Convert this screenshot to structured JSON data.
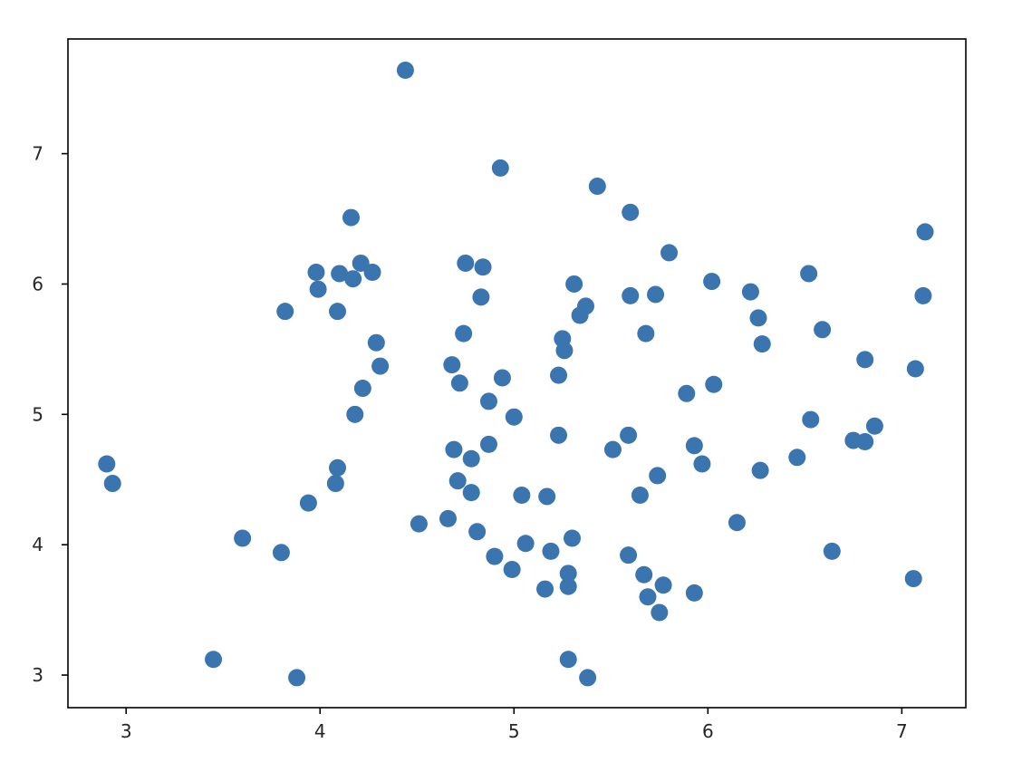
{
  "chart_data": {
    "type": "scatter",
    "title": "",
    "xlabel": "",
    "ylabel": "",
    "xlim": [
      2.7,
      7.33
    ],
    "ylim": [
      2.75,
      7.88
    ],
    "xticks": [
      3,
      4,
      5,
      6,
      7
    ],
    "yticks": [
      3,
      4,
      5,
      6,
      7
    ],
    "xtick_labels": [
      "3",
      "4",
      "5",
      "6",
      "7"
    ],
    "ytick_labels": [
      "3",
      "4",
      "5",
      "6",
      "7"
    ],
    "grid": false,
    "legend": "none",
    "marker_color": "#3a75b0",
    "series": [
      {
        "points": [
          [
            2.9,
            4.62
          ],
          [
            2.93,
            4.47
          ],
          [
            3.45,
            3.12
          ],
          [
            3.6,
            4.05
          ],
          [
            3.8,
            3.94
          ],
          [
            3.82,
            5.79
          ],
          [
            3.88,
            2.98
          ],
          [
            3.94,
            4.32
          ],
          [
            3.98,
            6.09
          ],
          [
            3.99,
            5.96
          ],
          [
            4.08,
            4.47
          ],
          [
            4.09,
            4.59
          ],
          [
            4.09,
            5.79
          ],
          [
            4.1,
            6.08
          ],
          [
            4.16,
            6.51
          ],
          [
            4.17,
            6.04
          ],
          [
            4.18,
            5.0
          ],
          [
            4.21,
            6.16
          ],
          [
            4.22,
            5.2
          ],
          [
            4.27,
            6.09
          ],
          [
            4.29,
            5.55
          ],
          [
            4.31,
            5.37
          ],
          [
            4.44,
            7.64
          ],
          [
            4.51,
            4.16
          ],
          [
            4.66,
            4.2
          ],
          [
            4.68,
            5.38
          ],
          [
            4.69,
            4.73
          ],
          [
            4.71,
            4.49
          ],
          [
            4.72,
            5.24
          ],
          [
            4.74,
            5.62
          ],
          [
            4.75,
            6.16
          ],
          [
            4.78,
            4.4
          ],
          [
            4.78,
            4.66
          ],
          [
            4.81,
            4.1
          ],
          [
            4.83,
            5.9
          ],
          [
            4.84,
            6.13
          ],
          [
            4.87,
            5.1
          ],
          [
            4.87,
            4.77
          ],
          [
            4.9,
            3.91
          ],
          [
            4.93,
            6.89
          ],
          [
            4.94,
            5.28
          ],
          [
            4.99,
            3.81
          ],
          [
            5.0,
            4.98
          ],
          [
            5.04,
            4.38
          ],
          [
            5.06,
            4.01
          ],
          [
            5.16,
            3.66
          ],
          [
            5.17,
            4.37
          ],
          [
            5.19,
            3.95
          ],
          [
            5.23,
            4.84
          ],
          [
            5.23,
            5.3
          ],
          [
            5.25,
            5.58
          ],
          [
            5.26,
            5.49
          ],
          [
            5.28,
            3.68
          ],
          [
            5.28,
            3.78
          ],
          [
            5.28,
            3.12
          ],
          [
            5.3,
            4.05
          ],
          [
            5.31,
            6.0
          ],
          [
            5.34,
            5.76
          ],
          [
            5.37,
            5.83
          ],
          [
            5.38,
            2.98
          ],
          [
            5.43,
            6.75
          ],
          [
            5.51,
            4.73
          ],
          [
            5.59,
            3.92
          ],
          [
            5.59,
            4.84
          ],
          [
            5.6,
            6.55
          ],
          [
            5.6,
            5.91
          ],
          [
            5.65,
            4.38
          ],
          [
            5.67,
            3.77
          ],
          [
            5.68,
            5.62
          ],
          [
            5.69,
            3.6
          ],
          [
            5.73,
            5.92
          ],
          [
            5.74,
            4.53
          ],
          [
            5.75,
            3.48
          ],
          [
            5.77,
            3.69
          ],
          [
            5.8,
            6.24
          ],
          [
            5.89,
            5.16
          ],
          [
            5.93,
            4.76
          ],
          [
            5.93,
            3.63
          ],
          [
            5.97,
            4.62
          ],
          [
            6.02,
            6.02
          ],
          [
            6.03,
            5.23
          ],
          [
            6.15,
            4.17
          ],
          [
            6.22,
            5.94
          ],
          [
            6.26,
            5.74
          ],
          [
            6.27,
            4.57
          ],
          [
            6.28,
            5.54
          ],
          [
            6.46,
            4.67
          ],
          [
            6.52,
            6.08
          ],
          [
            6.53,
            4.96
          ],
          [
            6.59,
            5.65
          ],
          [
            6.64,
            3.95
          ],
          [
            6.75,
            4.8
          ],
          [
            6.81,
            5.42
          ],
          [
            6.81,
            4.79
          ],
          [
            6.86,
            4.91
          ],
          [
            7.06,
            3.74
          ],
          [
            7.07,
            5.35
          ],
          [
            7.11,
            5.91
          ],
          [
            7.12,
            6.4
          ]
        ]
      }
    ]
  }
}
